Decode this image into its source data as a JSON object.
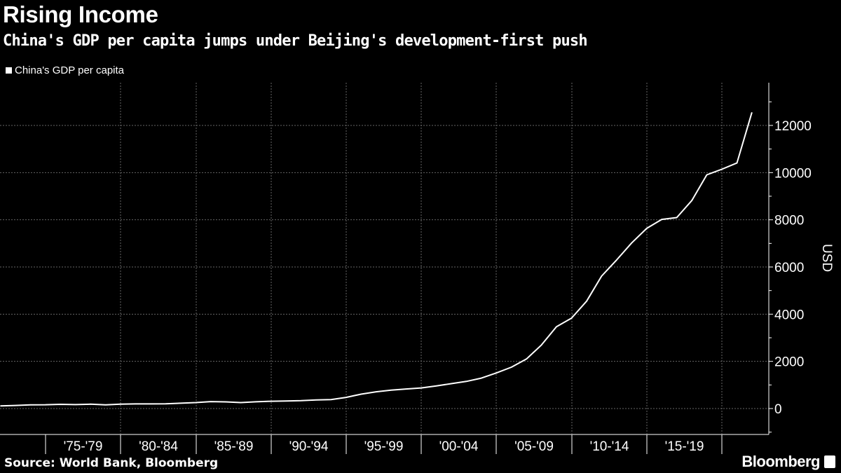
{
  "title": "Rising Income",
  "subtitle": "China's GDP per capita jumps under Beijing's development-first push",
  "source": "Source: World Bank, Bloomberg",
  "brand": "Bloomberg",
  "chart_data": {
    "type": "line",
    "title": "Rising Income",
    "ylabel": "USD",
    "xlabel": "",
    "legend": "top-left",
    "grid": true,
    "line_color": "#ffffff",
    "background": "#000000",
    "x_tick_labels": [
      "'75-'79",
      "'80-'84",
      "'85-'89",
      "'90-'94",
      "'95-'99",
      "'00-'04",
      "'05-'09",
      "'10-'14",
      "'15-'19"
    ],
    "y_ticks": [
      0,
      2000,
      4000,
      6000,
      8000,
      10000,
      12000
    ],
    "ylim": [
      -1100,
      13800
    ],
    "xlim": [
      1971,
      2022.2
    ],
    "series": [
      {
        "name": "China's GDP per capita",
        "x": [
          1971,
          1972,
          1973,
          1974,
          1975,
          1976,
          1977,
          1978,
          1979,
          1980,
          1981,
          1982,
          1983,
          1984,
          1985,
          1986,
          1987,
          1988,
          1989,
          1990,
          1991,
          1992,
          1993,
          1994,
          1995,
          1996,
          1997,
          1998,
          1999,
          2000,
          2001,
          2002,
          2003,
          2004,
          2005,
          2006,
          2007,
          2008,
          2009,
          2010,
          2011,
          2012,
          2013,
          2014,
          2015,
          2016,
          2017,
          2018,
          2019,
          2020,
          2021
        ],
        "values": [
          113,
          132,
          157,
          160,
          178,
          165,
          185,
          156,
          183,
          195,
          197,
          203,
          225,
          251,
          294,
          282,
          251,
          284,
          310,
          318,
          333,
          366,
          377,
          473,
          609,
          709,
          781,
          828,
          873,
          959,
          1053,
          1149,
          1289,
          1509,
          1753,
          2099,
          2694,
          3468,
          3832,
          4550,
          5614,
          6301,
          7020,
          7636,
          8016,
          8094,
          8817,
          9905,
          10144,
          10409,
          12556
        ]
      }
    ]
  }
}
